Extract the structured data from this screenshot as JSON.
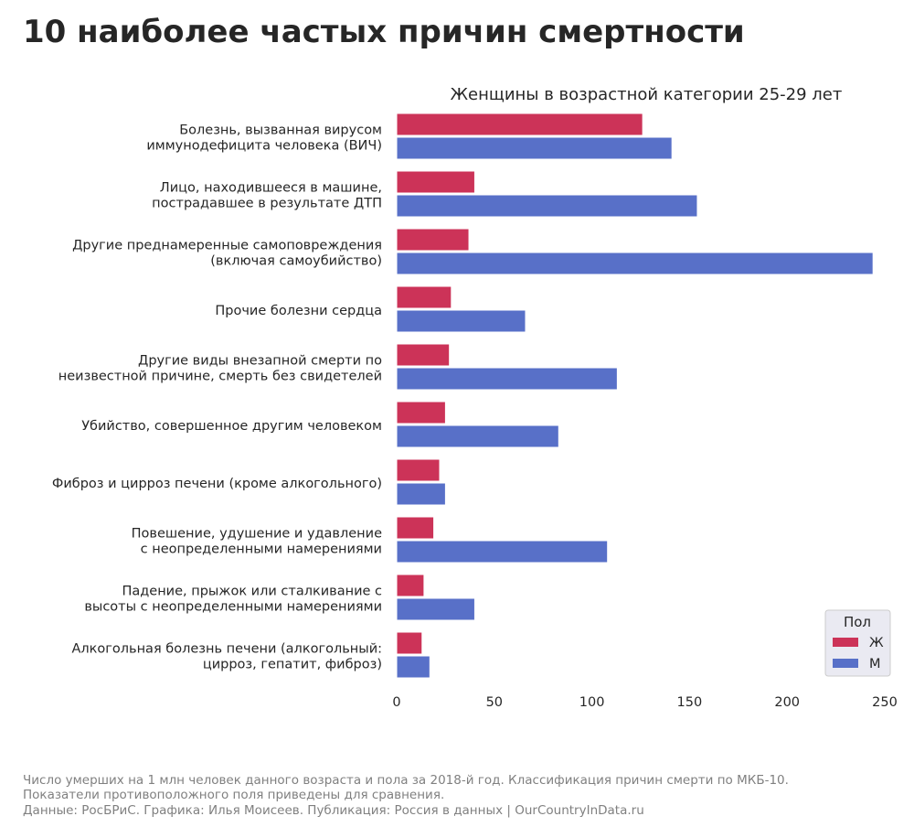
{
  "title": "10 наиболее частых причин смертности",
  "chart_data": {
    "type": "barh",
    "title": "Женщины в возрастной категории 25-29 лет",
    "categories": [
      "Болезнь, вызванная вирусом\nиммунодефицита человека (ВИЧ)",
      "Лицо, находившееся в машине,\nпострадавшее в результате ДТП",
      "Другие преднамеренные самоповреждения\n(включая самоубийство)",
      "Прочие болезни сердца",
      "Другие виды внезапной смерти по\nнеизвестной причине, смерть без свидетелей",
      "Убийство, совершенное другим человеком",
      "Фиброз и цирроз печени (кроме алкогольного)",
      "Повешение, удушение и удавление\nс неопределенными намерениями",
      "Падение, прыжок или сталкивание с\nвысоты с неопределенными намерениями",
      "Алкогольная болезнь печени (алкогольный:\nцирроз, гепатит, фиброз)"
    ],
    "series": [
      {
        "name": "Ж",
        "color": "#cc3358",
        "values": [
          126,
          40,
          37,
          28,
          27,
          25,
          22,
          19,
          14,
          13
        ]
      },
      {
        "name": "М",
        "color": "#5870c8",
        "values": [
          141,
          154,
          244,
          66,
          113,
          83,
          25,
          108,
          40,
          17
        ]
      }
    ],
    "xlim": [
      0,
      250
    ],
    "xticks": [
      0,
      50,
      100,
      150,
      200,
      250
    ],
    "legend_title": "Пол",
    "legend": "lower right"
  },
  "footer": [
    "Число умерших на 1 млн человек данного возраста и пола за 2018-й год. Классификация причин смерти по МКБ-10.",
    "Показатели противоположного поля приведены для сравнения.",
    "Данные: РосБРиС. Графика: Илья Моисеев. Публикация: Россия в данных | OurCountryInData.ru"
  ]
}
